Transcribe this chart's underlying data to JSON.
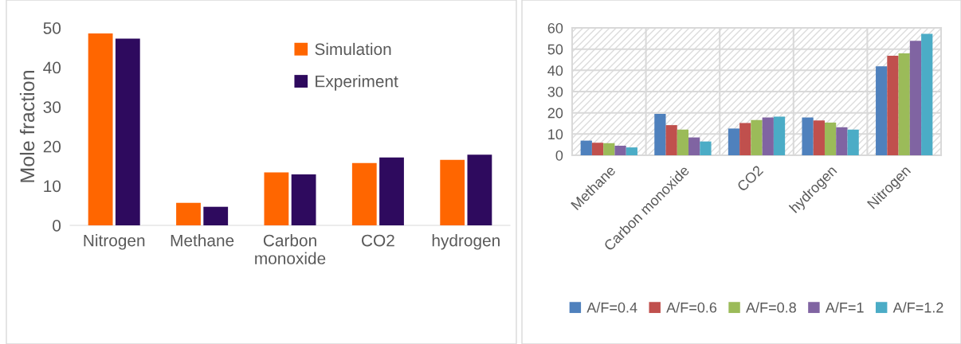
{
  "chart_data": [
    {
      "type": "bar",
      "ylabel": "Mole fraction",
      "categories": [
        "Nitrogen",
        "Methane",
        "Carbon\nmonoxide",
        "CO2",
        "hydrogen"
      ],
      "ylim": [
        0,
        50
      ],
      "yticks": [
        0,
        10,
        20,
        30,
        40,
        50
      ],
      "grid": false,
      "legend": "top right",
      "series": [
        {
          "name": "Simulation",
          "color": "#ff6600",
          "values": [
            48.6,
            5.7,
            13.4,
            15.8,
            16.6
          ]
        },
        {
          "name": "Experiment",
          "color": "#2e0a5e",
          "values": [
            47.3,
            4.7,
            12.9,
            17.2,
            17.9
          ]
        }
      ]
    },
    {
      "type": "bar",
      "categories": [
        "Methane",
        "Carbon monoxide",
        "CO2",
        "hydrogen",
        "Nitrogen"
      ],
      "ylim": [
        0,
        60
      ],
      "yticks": [
        0,
        10,
        20,
        30,
        40,
        50,
        60
      ],
      "grid": true,
      "legend": "bottom",
      "series": [
        {
          "name": "A/F=0.4",
          "color": "#4f81bd",
          "values": [
            6.9,
            19.5,
            12.6,
            17.8,
            41.9
          ]
        },
        {
          "name": "A/F=0.6",
          "color": "#c0504d",
          "values": [
            5.9,
            14.2,
            15.2,
            16.4,
            46.9
          ]
        },
        {
          "name": "A/F=0.8",
          "color": "#9bbb59",
          "values": [
            5.7,
            12.1,
            16.6,
            15.4,
            48.0
          ]
        },
        {
          "name": "A/F=1",
          "color": "#8064a2",
          "values": [
            4.5,
            8.4,
            17.8,
            13.2,
            53.9
          ]
        },
        {
          "name": "A/F=1.2",
          "color": "#4bacc6",
          "values": [
            3.7,
            6.5,
            18.2,
            12.1,
            57.2
          ]
        }
      ]
    }
  ]
}
